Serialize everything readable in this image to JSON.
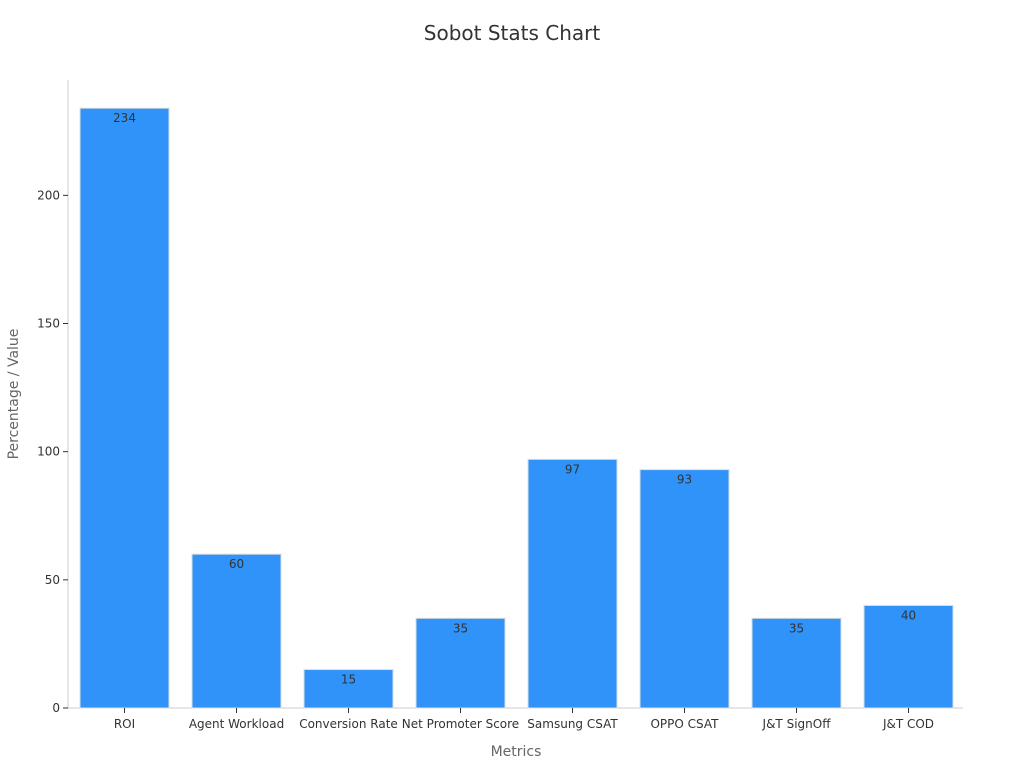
{
  "chart_data": {
    "type": "bar",
    "title": "Sobot Stats Chart",
    "xlabel": "Metrics",
    "ylabel": "Percentage / Value",
    "categories": [
      "ROI",
      "Agent Workload",
      "Conversion Rate",
      "Net Promoter Score",
      "Samsung CSAT",
      "OPPO CSAT",
      "J&T SignOff",
      "J&T COD"
    ],
    "values": [
      234,
      60,
      15,
      35,
      97,
      93,
      35,
      40
    ],
    "data_labels": [
      "234",
      "60",
      "15",
      "35",
      "97",
      "93",
      "35",
      "40"
    ],
    "ylim": [
      0,
      245
    ],
    "yticks": [
      0,
      50,
      100,
      150,
      200
    ],
    "ytick_labels": [
      "0",
      "50",
      "100",
      "150",
      "200"
    ],
    "grid": false,
    "legend": "none",
    "bar_color": "#2F93F9"
  }
}
